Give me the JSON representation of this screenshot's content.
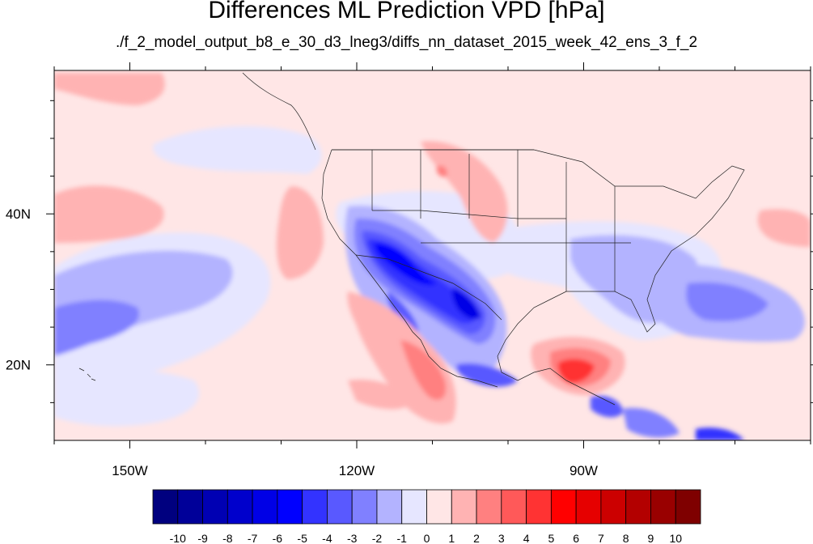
{
  "title": "Differences ML Prediction VPD [hPa]",
  "subtitle": "./f_2_model_output_b8_e_30_d3_lneg3/diffs_nn_dataset_2015_week_42_ens_3_f_2",
  "map": {
    "lon_range": [
      -160,
      -60
    ],
    "lat_range": [
      10,
      59
    ],
    "lon_ticks": [
      {
        "value": -150,
        "label": "150W"
      },
      {
        "value": -120,
        "label": "120W"
      },
      {
        "value": -90,
        "label": "90W"
      }
    ],
    "lat_ticks": [
      {
        "value": 40,
        "label": "40N"
      },
      {
        "value": 20,
        "label": "20N"
      }
    ]
  },
  "colorbar": {
    "labels": [
      "-10",
      "-9",
      "-8",
      "-7",
      "-6",
      "-5",
      "-4",
      "-3",
      "-2",
      "-1",
      "0",
      "1",
      "2",
      "3",
      "4",
      "5",
      "6",
      "7",
      "8",
      "9",
      "10"
    ],
    "colors": [
      "#00007f",
      "#000099",
      "#0000b3",
      "#0000cc",
      "#0000e6",
      "#0000ff",
      "#3333ff",
      "#5959ff",
      "#8080ff",
      "#b3b3ff",
      "#e6e6ff",
      "#ffe6e6",
      "#ffb3b3",
      "#ff8080",
      "#ff5959",
      "#ff3333",
      "#ff0000",
      "#e60000",
      "#cc0000",
      "#b30000",
      "#990000",
      "#7f0000"
    ]
  }
}
